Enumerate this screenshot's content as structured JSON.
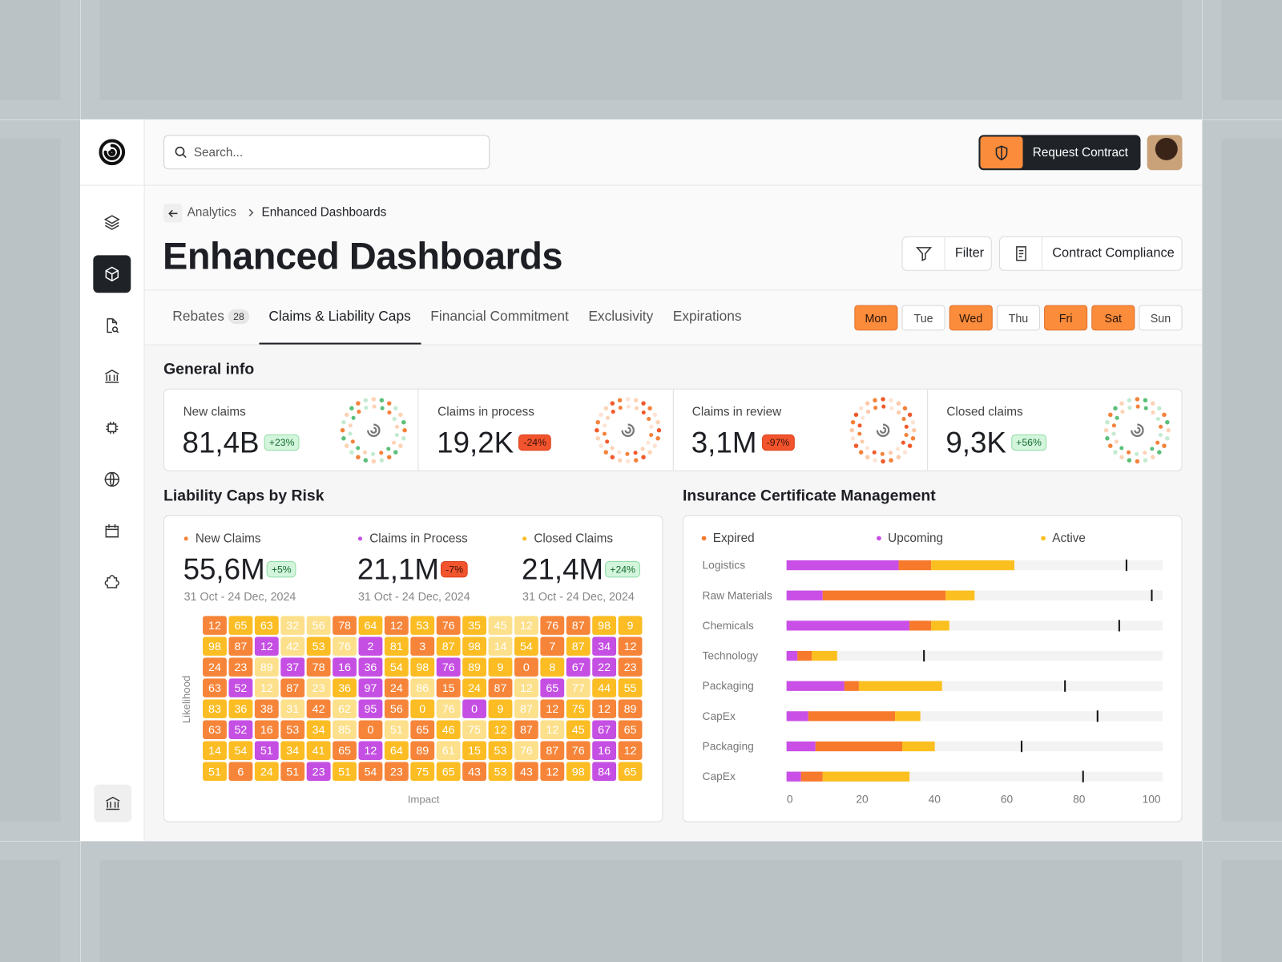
{
  "header": {
    "search_placeholder": "Search...",
    "request_button": "Request Contract"
  },
  "breadcrumb": {
    "parent": "Analytics",
    "current": "Enhanced Dashboards"
  },
  "page_title": "Enhanced Dashboards",
  "actions": {
    "filter": "Filter",
    "compliance": "Contract Compliance"
  },
  "tabs": [
    {
      "label": "Rebates",
      "badge": 28,
      "active": false
    },
    {
      "label": "Claims & Liability Caps",
      "active": true
    },
    {
      "label": "Financial Commitment",
      "active": false
    },
    {
      "label": "Exclusivity",
      "active": false
    },
    {
      "label": "Expirations",
      "active": false
    }
  ],
  "days": [
    {
      "label": "Mon",
      "active": true
    },
    {
      "label": "Tue",
      "active": false
    },
    {
      "label": "Wed",
      "active": true
    },
    {
      "label": "Thu",
      "active": false
    },
    {
      "label": "Fri",
      "active": true
    },
    {
      "label": "Sat",
      "active": true
    },
    {
      "label": "Sun",
      "active": false
    }
  ],
  "general_info": {
    "title": "General info",
    "cards": [
      {
        "label": "New claims",
        "value": "81,4B",
        "change": "+23%",
        "positive": true
      },
      {
        "label": "Claims in process",
        "value": "19,2K",
        "change": "-24%",
        "positive": false
      },
      {
        "label": "Claims in review",
        "value": "3,1M",
        "change": "-97%",
        "positive": false
      },
      {
        "label": "Closed claims",
        "value": "9,3K",
        "change": "+56%",
        "positive": true
      }
    ]
  },
  "chart_data": [
    {
      "type": "heatmap",
      "title": "Liability Caps by Risk",
      "xlabel": "Impact",
      "ylabel": "Likelihood",
      "metrics": [
        {
          "label": "New Claims",
          "color": "#f6853a",
          "value": "55,6M",
          "change": "+5%",
          "positive": true,
          "date_range": "31 Oct - 24 Dec, 2024"
        },
        {
          "label": "Claims in Process",
          "color": "#c54fe3",
          "value": "21,1M",
          "change": "-7%",
          "positive": false,
          "date_range": "31 Oct - 24 Dec, 2024"
        },
        {
          "label": "Closed Claims",
          "color": "#fbbd23",
          "value": "21,4M",
          "change": "+24%",
          "positive": true,
          "date_range": "31 Oct - 24 Dec, 2024"
        }
      ],
      "values": [
        [
          12,
          65,
          63,
          32,
          56,
          78,
          64,
          12,
          53,
          76,
          35,
          45,
          12,
          76,
          87,
          98,
          9
        ],
        [
          98,
          87,
          12,
          42,
          53,
          76,
          2,
          81,
          3,
          87,
          98,
          14,
          54,
          7,
          87,
          34,
          12
        ],
        [
          24,
          23,
          89,
          37,
          78,
          16,
          36,
          54,
          98,
          76,
          89,
          9,
          0,
          8,
          67,
          22,
          23
        ],
        [
          63,
          52,
          12,
          87,
          23,
          36,
          97,
          24,
          86,
          15,
          24,
          87,
          12,
          65,
          77,
          44,
          55
        ],
        [
          83,
          36,
          38,
          31,
          42,
          62,
          95,
          56,
          0,
          76,
          0,
          9,
          87,
          12,
          75,
          12,
          89
        ],
        [
          63,
          52,
          16,
          53,
          34,
          85,
          0,
          51,
          65,
          46,
          75,
          12,
          87,
          12,
          45,
          67,
          65
        ],
        [
          14,
          54,
          51,
          34,
          41,
          65,
          12,
          64,
          89,
          61,
          15,
          53,
          76,
          87,
          76,
          16,
          12
        ],
        [
          51,
          6,
          24,
          51,
          23,
          51,
          54,
          23,
          75,
          65,
          43,
          53,
          43,
          12,
          98,
          84,
          65
        ]
      ],
      "colors": [
        [
          "#f6853a",
          "#fbbd23",
          "#fbbd23",
          "#fde08b",
          "#fde08b",
          "#f6853a",
          "#fbbd23",
          "#f6853a",
          "#fbbd23",
          "#f6853a",
          "#fbbd23",
          "#fde08b",
          "#fde08b",
          "#f6853a",
          "#f6853a",
          "#fbbd23",
          "#fbbd23"
        ],
        [
          "#fbbd23",
          "#f6853a",
          "#c54fe3",
          "#fde08b",
          "#fbbd23",
          "#fde08b",
          "#c54fe3",
          "#fbbd23",
          "#f6853a",
          "#fbbd23",
          "#fbbd23",
          "#fde08b",
          "#fbbd23",
          "#f6853a",
          "#fbbd23",
          "#c54fe3",
          "#f6853a"
        ],
        [
          "#f6853a",
          "#f6853a",
          "#fde08b",
          "#c54fe3",
          "#f6853a",
          "#c54fe3",
          "#c54fe3",
          "#fbbd23",
          "#fbbd23",
          "#c54fe3",
          "#fbbd23",
          "#fbbd23",
          "#f6853a",
          "#fbbd23",
          "#c54fe3",
          "#c54fe3",
          "#f6853a"
        ],
        [
          "#f6853a",
          "#c54fe3",
          "#fde08b",
          "#f6853a",
          "#fde08b",
          "#fbbd23",
          "#c54fe3",
          "#f6853a",
          "#fde08b",
          "#f6853a",
          "#fbbd23",
          "#f6853a",
          "#fde08b",
          "#c54fe3",
          "#fde08b",
          "#fbbd23",
          "#fbbd23"
        ],
        [
          "#fbbd23",
          "#fbbd23",
          "#f6853a",
          "#fde08b",
          "#f6853a",
          "#fde08b",
          "#c54fe3",
          "#f6853a",
          "#fbbd23",
          "#fde08b",
          "#c54fe3",
          "#fbbd23",
          "#fde08b",
          "#f6853a",
          "#fbbd23",
          "#f6853a",
          "#f6853a"
        ],
        [
          "#f6853a",
          "#c54fe3",
          "#f6853a",
          "#f6853a",
          "#fbbd23",
          "#fde08b",
          "#f6853a",
          "#fde08b",
          "#f6853a",
          "#fbbd23",
          "#fde08b",
          "#fbbd23",
          "#f6853a",
          "#fde08b",
          "#fbbd23",
          "#c54fe3",
          "#f6853a"
        ],
        [
          "#fbbd23",
          "#fbbd23",
          "#c54fe3",
          "#fbbd23",
          "#fbbd23",
          "#f6853a",
          "#c54fe3",
          "#fbbd23",
          "#f6853a",
          "#fde08b",
          "#fbbd23",
          "#fbbd23",
          "#fde08b",
          "#f6853a",
          "#f6853a",
          "#c54fe3",
          "#f6853a"
        ],
        [
          "#fbbd23",
          "#f6853a",
          "#fbbd23",
          "#f6853a",
          "#c54fe3",
          "#fbbd23",
          "#f6853a",
          "#f6853a",
          "#fbbd23",
          "#fbbd23",
          "#f6853a",
          "#fbbd23",
          "#f6853a",
          "#f6853a",
          "#fbbd23",
          "#c54fe3",
          "#fbbd23"
        ]
      ]
    },
    {
      "type": "bar",
      "orientation": "horizontal",
      "stacked": true,
      "title": "Insurance Certificate Management",
      "categories": [
        "Logistics",
        "Raw Materials",
        "Chemicals",
        "Technology",
        "Packaging",
        "CapEx",
        "Packaging",
        "CapEx"
      ],
      "series": [
        {
          "name": "Upcoming",
          "color": "#c94fe6",
          "values": [
            31,
            10,
            34,
            3,
            16,
            6,
            8,
            4
          ]
        },
        {
          "name": "Expired",
          "color": "#f7792c",
          "values": [
            9,
            34,
            6,
            4,
            4,
            24,
            24,
            6
          ]
        },
        {
          "name": "Active",
          "color": "#fbbf1f",
          "values": [
            23,
            8,
            5,
            7,
            23,
            7,
            9,
            24
          ]
        }
      ],
      "target_values": [
        94,
        101,
        92,
        38,
        77,
        86,
        65,
        82
      ],
      "xlim": [
        0,
        104
      ],
      "xticks": [
        0,
        20,
        40,
        60,
        80,
        100
      ]
    }
  ]
}
